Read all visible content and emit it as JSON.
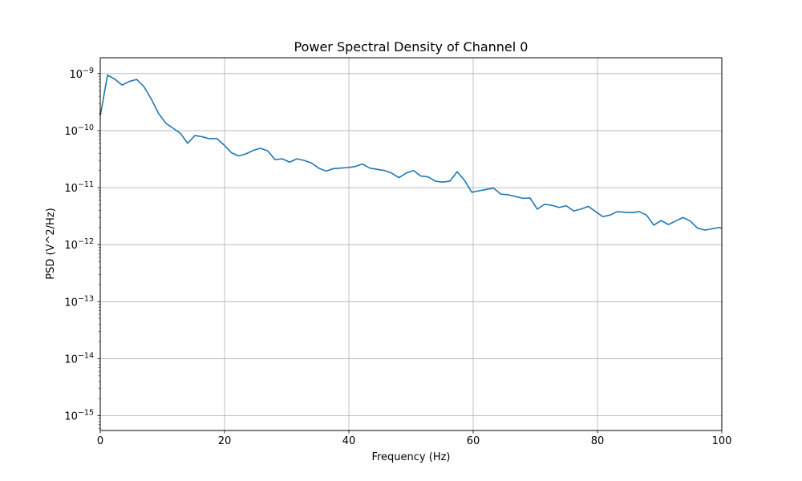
{
  "chart_data": {
    "type": "line",
    "title": "Power Spectral Density of Channel 0",
    "xlabel": "Frequency (Hz)",
    "ylabel": "PSD (V^2/Hz)",
    "xlim": [
      0,
      100
    ],
    "ylim": [
      5.5e-16,
      1.9e-09
    ],
    "yscale": "log",
    "grid": true,
    "x_ticks": [
      0,
      20,
      40,
      60,
      80,
      100
    ],
    "y_ticks": [
      {
        "value": 1e-15,
        "base": "10",
        "exp": "−15"
      },
      {
        "value": 1e-14,
        "base": "10",
        "exp": "−14"
      },
      {
        "value": 1e-13,
        "base": "10",
        "exp": "−13"
      },
      {
        "value": 1e-12,
        "base": "10",
        "exp": "−12"
      },
      {
        "value": 1e-11,
        "base": "10",
        "exp": "−11"
      },
      {
        "value": 1e-10,
        "base": "10",
        "exp": "−10"
      },
      {
        "value": 1e-09,
        "base": "10",
        "exp": "−9"
      }
    ],
    "series": [
      {
        "color": "#1f77b4",
        "x": [
          0,
          1.17,
          2.34,
          3.52,
          4.69,
          5.86,
          7.03,
          8.2,
          9.38,
          10.55,
          11.72,
          12.89,
          14.06,
          15.23,
          16.41,
          17.58,
          18.75,
          19.92,
          21.09,
          22.27,
          23.44,
          24.61,
          25.78,
          26.95,
          28.13,
          29.3,
          30.47,
          31.64,
          32.81,
          33.98,
          35.16,
          36.33,
          37.5,
          38.67,
          39.84,
          41.02,
          42.19,
          43.36,
          44.53,
          45.7,
          46.88,
          48.05,
          49.22,
          50.39,
          51.56,
          52.73,
          53.91,
          55.08,
          56.25,
          57.42,
          58.59,
          59.77,
          60.94,
          62.11,
          63.28,
          64.45,
          65.63,
          66.8,
          67.97,
          69.14,
          70.31,
          71.48,
          72.66,
          73.83,
          75,
          76.17,
          77.34,
          78.52,
          79.69,
          80.86,
          82.03,
          83.2,
          84.38,
          85.55,
          86.72,
          87.89,
          89.06,
          90.23,
          91.41,
          92.58,
          93.75,
          94.92,
          96.09,
          97.27,
          98.44,
          99.61,
          100
        ],
        "y": [
          1.8e-10,
          9.4e-10,
          8e-10,
          6.3e-10,
          7.3e-10,
          7.9e-10,
          5.9e-10,
          3.6e-10,
          2e-10,
          1.35e-10,
          1.1e-10,
          9e-11,
          6e-11,
          8.2e-11,
          7.8e-11,
          7.2e-11,
          7.3e-11,
          5.6e-11,
          4.1e-11,
          3.6e-11,
          3.9e-11,
          4.5e-11,
          4.9e-11,
          4.4e-11,
          3.1e-11,
          3.2e-11,
          2.8e-11,
          3.2e-11,
          3e-11,
          2.7e-11,
          2.2e-11,
          1.95e-11,
          2.15e-11,
          2.2e-11,
          2.25e-11,
          2.35e-11,
          2.6e-11,
          2.2e-11,
          2.1e-11,
          2e-11,
          1.8e-11,
          1.5e-11,
          1.8e-11,
          2e-11,
          1.6e-11,
          1.55e-11,
          1.3e-11,
          1.25e-11,
          1.3e-11,
          1.9e-11,
          1.35e-11,
          8.3e-12,
          8.8e-12,
          9.3e-12,
          9.8e-12,
          7.7e-12,
          7.5e-12,
          7e-12,
          6.5e-12,
          6.6e-12,
          4.2e-12,
          5.1e-12,
          4.9e-12,
          4.5e-12,
          4.8e-12,
          3.9e-12,
          4.2e-12,
          4.7e-12,
          3.8e-12,
          3.1e-12,
          3.3e-12,
          3.8e-12,
          3.7e-12,
          3.65e-12,
          3.8e-12,
          3.3e-12,
          2.2e-12,
          2.65e-12,
          2.25e-12,
          2.6e-12,
          3e-12,
          2.6e-12,
          1.95e-12,
          1.8e-12,
          1.9e-12,
          2e-12,
          1.95e-12
        ]
      }
    ]
  }
}
